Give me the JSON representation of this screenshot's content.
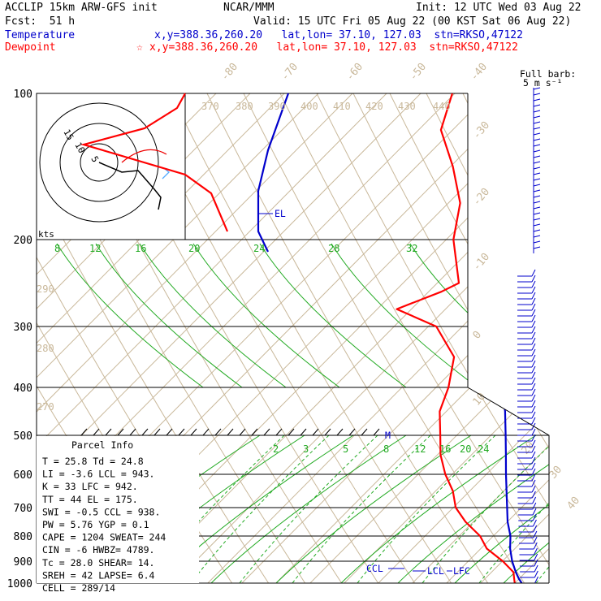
{
  "header": {
    "model": "ACCLIP 15km ARW-GFS init",
    "center": "NCAR/MMM",
    "init": "Init: 12 UTC Wed 03 Aug 22",
    "fcst": "Fcst:  51 h",
    "valid": "Valid: 15 UTC Fri 05 Aug 22 (00 KST Sat 06 Aug 22)",
    "temp_label": "Temperature",
    "temp_info": "x,y=388.36,260.20   lat,lon= 37.10, 127.03  stn=RKSO,47122",
    "dew_label": "Dewpoint",
    "dew_star": "☆",
    "dew_info": "x,y=388.36,260.20   lat,lon= 37.10, 127.03  stn=RKSO,47122"
  },
  "colors": {
    "temperature": "#0000cc",
    "dewpoint": "#ff0000",
    "dry_adiabat": "#c9b89a",
    "mixing_ratio": "#22aa22",
    "isobar": "#000000"
  },
  "hodograph": {
    "units": "kts",
    "ring_labels": [
      "5",
      "10",
      "15"
    ]
  },
  "wind_barb_label": "Full barb:\n5 m s⁻¹",
  "annotations": {
    "el": "EL",
    "ccl": "CCL",
    "lcl": "LCL",
    "lfc": "LFC",
    "m": "M"
  },
  "parcel_info": {
    "title": "Parcel Info",
    "rows": [
      "T  =    25.8 Td =  24.8",
      "LI =    -3.6 LCL =  943.",
      "K  =      33 LFC =  942.",
      "TT =      44 EL  =  175.",
      "SWI =   -0.5 CCL =  938.",
      "PW =    5.76 YGP =   0.1",
      "CAPE =  1204 SWEAT=  244",
      "CIN =     -6 HWBZ= 4789.",
      "Tc =    28.0 SHEAR=  14.",
      "SREH =    42 LAPSE=  6.4",
      "CELL = 289/14"
    ]
  },
  "chart_data": {
    "type": "skew-t",
    "pressure_levels": [
      100,
      200,
      300,
      400,
      500,
      600,
      700,
      800,
      900,
      1000
    ],
    "theta_labels": [
      "370",
      "380",
      "390",
      "400",
      "410",
      "420",
      "430",
      "440"
    ],
    "theta_labels_left": [
      "290",
      "280",
      "270"
    ],
    "isotherm_labels": [
      "-80",
      "-70",
      "-60",
      "-50",
      "-40",
      "-30",
      "-20",
      "-10",
      "0",
      "10",
      "20",
      "30",
      "40"
    ],
    "mixing_ratio_labels_upper": [
      "8",
      "12",
      "16",
      "20",
      "24",
      "28",
      "32"
    ],
    "mixing_ratio_labels_lower": [
      "2",
      "3",
      "5",
      "8",
      "12",
      "16",
      "20",
      "24"
    ],
    "temperature": [
      {
        "p": 1000,
        "t": 26.5
      },
      {
        "p": 980,
        "t": 25.0
      },
      {
        "p": 950,
        "t": 23.0
      },
      {
        "p": 900,
        "t": 20.0
      },
      {
        "p": 850,
        "t": 17.0
      },
      {
        "p": 800,
        "t": 14.5
      },
      {
        "p": 750,
        "t": 11.0
      },
      {
        "p": 700,
        "t": 8.0
      },
      {
        "p": 650,
        "t": 4.5
      },
      {
        "p": 600,
        "t": 1.0
      },
      {
        "p": 550,
        "t": -3.0
      },
      {
        "p": 500,
        "t": -7.0
      },
      {
        "p": 450,
        "t": -12.0
      },
      {
        "p": 400,
        "t": -17.5
      },
      {
        "p": 350,
        "t": -24.5
      },
      {
        "p": 300,
        "t": -32.5
      },
      {
        "p": 250,
        "t": -42.0
      },
      {
        "p": 200,
        "t": -54.0
      },
      {
        "p": 175,
        "t": -61.0
      },
      {
        "p": 150,
        "t": -68.0
      },
      {
        "p": 125,
        "t": -72.0
      },
      {
        "p": 100,
        "t": -74.0
      }
    ],
    "dewpoint": [
      {
        "p": 1000,
        "t": 25.0
      },
      {
        "p": 980,
        "t": 24.0
      },
      {
        "p": 950,
        "t": 22.5
      },
      {
        "p": 900,
        "t": 18.0
      },
      {
        "p": 850,
        "t": 12.0
      },
      {
        "p": 800,
        "t": 8.0
      },
      {
        "p": 750,
        "t": 2.0
      },
      {
        "p": 700,
        "t": -3.0
      },
      {
        "p": 650,
        "t": -7.0
      },
      {
        "p": 600,
        "t": -12.0
      },
      {
        "p": 550,
        "t": -17.0
      },
      {
        "p": 500,
        "t": -21.0
      },
      {
        "p": 450,
        "t": -26.0
      },
      {
        "p": 400,
        "t": -29.0
      },
      {
        "p": 350,
        "t": -34.0
      },
      {
        "p": 300,
        "t": -44.0
      },
      {
        "p": 280,
        "t": -56.0
      },
      {
        "p": 260,
        "t": -50.0
      },
      {
        "p": 250,
        "t": -48.0
      },
      {
        "p": 200,
        "t": -58.0
      },
      {
        "p": 175,
        "t": -64.0
      },
      {
        "p": 150,
        "t": -73.0
      },
      {
        "p": 125,
        "t": -83.0
      },
      {
        "p": 100,
        "t": -88.0
      }
    ],
    "hodograph_points": [
      [
        0.0,
        -5.0
      ],
      [
        4.0,
        -5.5
      ],
      [
        7.0,
        -7.0
      ],
      [
        6.5,
        -10.0
      ],
      [
        8.5,
        -12.0
      ]
    ],
    "xlabel": "",
    "ylabel": ""
  }
}
